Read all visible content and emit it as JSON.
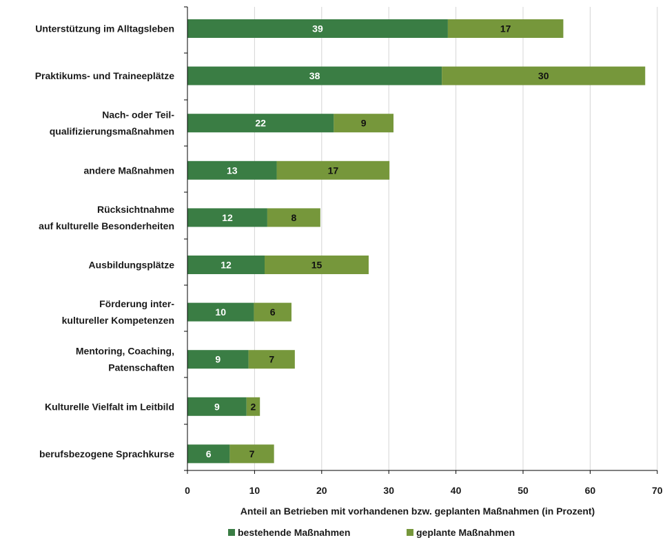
{
  "chart_data": {
    "type": "bar",
    "orientation": "horizontal",
    "stacked": true,
    "categories": [
      [
        "Unterstützung im Alltagsleben"
      ],
      [
        "Praktikums- und Traineeplätze"
      ],
      [
        "Nach- oder Teil-",
        "qualifizierungsmaßnahmen"
      ],
      [
        "andere Maßnahmen"
      ],
      [
        "Rücksichtnahme",
        "auf kulturelle Besonderheiten"
      ],
      [
        "Ausbildungsplätze"
      ],
      [
        "Förderung inter-",
        "kultureller Kompetenzen"
      ],
      [
        "Mentoring, Coaching,",
        "Patenschaften"
      ],
      [
        "Kulturelle Vielfalt im Leitbild"
      ],
      [
        "berufsbezogene Sprachkurse"
      ]
    ],
    "series": [
      {
        "name": "bestehende Maßnahmen",
        "color": "#3a7d44",
        "label_color": "#ffffff",
        "values": [
          38.8,
          37.9,
          21.8,
          13.3,
          11.9,
          11.5,
          9.9,
          9.1,
          8.8,
          6.3
        ],
        "labels": [
          "39",
          "38",
          "22",
          "13",
          "12",
          "12",
          "10",
          "9",
          "9",
          "6"
        ]
      },
      {
        "name": "geplante Maßnahmen",
        "color": "#76973b",
        "label_color": "#111111",
        "values": [
          17.2,
          30.3,
          8.9,
          16.8,
          7.9,
          15.5,
          5.6,
          6.9,
          2.0,
          6.6
        ],
        "labels": [
          "17",
          "30",
          "9",
          "17",
          "8",
          "15",
          "6",
          "7",
          "2",
          "7"
        ]
      }
    ],
    "xlabel": "Anteil  an Betrieben mit vorhandenen  bzw. geplanten Maßnahmen (in Prozent)",
    "xlim": [
      0,
      70
    ],
    "xticks": [
      0,
      10,
      20,
      30,
      40,
      50,
      60,
      70
    ],
    "grid": true,
    "legend_position": "bottom"
  }
}
